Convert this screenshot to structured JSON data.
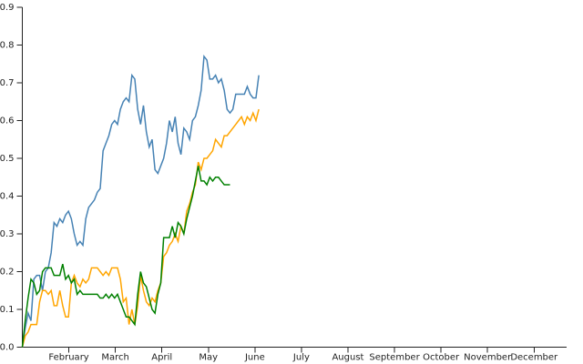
{
  "chart_data": {
    "type": "line",
    "x": [
      0,
      0.062,
      0.124,
      0.186,
      0.248,
      0.31,
      0.372,
      0.434,
      0.496,
      0.558,
      0.62,
      0.682,
      0.744,
      0.806,
      0.868,
      0.93,
      0.992,
      1.054,
      1.116,
      1.178,
      1.24,
      1.302,
      1.364,
      1.426,
      1.488,
      1.55,
      1.612,
      1.674,
      1.736,
      1.798,
      1.86,
      1.922,
      1.984,
      2.046,
      2.108,
      2.17,
      2.232,
      2.294,
      2.356,
      2.418,
      2.48,
      2.542,
      2.604,
      2.666,
      2.728,
      2.79,
      2.852,
      2.914,
      2.976,
      3.038,
      3.1,
      3.162,
      3.224,
      3.286,
      3.348,
      3.41,
      3.472,
      3.534,
      3.596,
      3.658,
      3.72,
      3.782,
      3.844,
      3.906,
      3.968,
      4.03,
      4.092,
      4.154,
      4.216,
      4.278,
      4.34,
      4.402,
      4.464,
      4.526,
      4.588,
      4.65,
      4.712,
      4.774,
      4.836,
      4.898,
      4.96,
      5.022,
      5.084
    ],
    "series": [
      {
        "color": "#4682b4",
        "values": [
          0.0,
          0.05,
          0.09,
          0.07,
          0.18,
          0.19,
          0.19,
          0.15,
          0.2,
          0.21,
          0.25,
          0.33,
          0.32,
          0.34,
          0.33,
          0.35,
          0.36,
          0.34,
          0.3,
          0.27,
          0.28,
          0.27,
          0.34,
          0.37,
          0.38,
          0.39,
          0.41,
          0.42,
          0.52,
          0.54,
          0.56,
          0.59,
          0.6,
          0.59,
          0.63,
          0.65,
          0.66,
          0.65,
          0.72,
          0.71,
          0.63,
          0.59,
          0.64,
          0.57,
          0.53,
          0.55,
          0.47,
          0.46,
          0.48,
          0.5,
          0.54,
          0.6,
          0.57,
          0.61,
          0.54,
          0.51,
          0.58,
          0.57,
          0.55,
          0.6,
          0.61,
          0.64,
          0.68,
          0.77,
          0.76,
          0.71,
          0.71,
          0.72,
          0.7,
          0.71,
          0.68,
          0.63,
          0.62,
          0.63,
          0.67,
          0.67,
          0.67,
          0.67,
          0.69,
          0.67,
          0.66,
          0.66,
          0.72
        ]
      },
      {
        "color": "#ffa500",
        "values": [
          0.0,
          0.03,
          0.04,
          0.06,
          0.06,
          0.06,
          0.12,
          0.15,
          0.15,
          0.14,
          0.15,
          0.11,
          0.11,
          0.15,
          0.11,
          0.08,
          0.08,
          0.17,
          0.19,
          0.17,
          0.16,
          0.18,
          0.17,
          0.18,
          0.21,
          0.21,
          0.21,
          0.2,
          0.19,
          0.2,
          0.19,
          0.21,
          0.21,
          0.21,
          0.18,
          0.12,
          0.13,
          0.06,
          0.1,
          0.06,
          0.11,
          0.19,
          0.15,
          0.12,
          0.11,
          0.13,
          0.12,
          0.15,
          0.17,
          0.24,
          0.25,
          0.27,
          0.28,
          0.3,
          0.28,
          0.32,
          0.3,
          0.36,
          0.38,
          0.41,
          0.43,
          0.49,
          0.47,
          0.5,
          0.5,
          0.51,
          0.52,
          0.55,
          0.54,
          0.53,
          0.56,
          0.56,
          0.57,
          0.58,
          0.59,
          0.6,
          0.61,
          0.59,
          0.61,
          0.6,
          0.62,
          0.6,
          0.63
        ]
      },
      {
        "color": "#008000",
        "values": [
          0.0,
          0.07,
          0.13,
          0.18,
          0.17,
          0.14,
          0.15,
          0.2,
          0.21,
          0.21,
          0.21,
          0.19,
          0.19,
          0.19,
          0.22,
          0.18,
          0.19,
          0.17,
          0.18,
          0.14,
          0.15,
          0.14,
          0.14,
          0.14,
          0.14,
          0.14,
          0.14,
          0.13,
          0.13,
          0.14,
          0.13,
          0.14,
          0.13,
          0.14,
          0.12,
          0.1,
          0.08,
          0.08,
          0.07,
          0.06,
          0.14,
          0.2,
          0.17,
          0.16,
          0.13,
          0.1,
          0.09,
          0.14,
          0.17,
          0.29,
          0.29,
          0.29,
          0.32,
          0.29,
          0.33,
          0.32,
          0.3,
          0.34,
          0.37,
          0.4,
          0.44,
          0.48,
          0.44,
          0.44,
          0.43,
          0.45,
          0.44,
          0.45,
          0.45,
          0.44,
          0.43,
          0.43,
          0.43,
          null,
          null,
          null,
          null,
          null,
          null,
          null,
          null,
          null,
          null
        ]
      }
    ],
    "xlim": [
      0,
      11.7
    ],
    "xticks": [
      {
        "value": 1,
        "label": "February"
      },
      {
        "value": 2,
        "label": "March"
      },
      {
        "value": 3,
        "label": "April"
      },
      {
        "value": 4,
        "label": "May"
      },
      {
        "value": 5,
        "label": "June"
      },
      {
        "value": 6,
        "label": "July"
      },
      {
        "value": 7,
        "label": "August"
      },
      {
        "value": 8,
        "label": "September"
      },
      {
        "value": 9,
        "label": "October"
      },
      {
        "value": 10,
        "label": "November"
      },
      {
        "value": 11,
        "label": "December"
      }
    ],
    "ylim": [
      0,
      0.9
    ],
    "yticks": [
      {
        "value": 0,
        "label": "0.0"
      },
      0.1,
      0.2,
      0.3,
      0.4,
      0.5,
      0.6,
      0.7,
      0.8,
      0.9
    ],
    "grid": false
  }
}
